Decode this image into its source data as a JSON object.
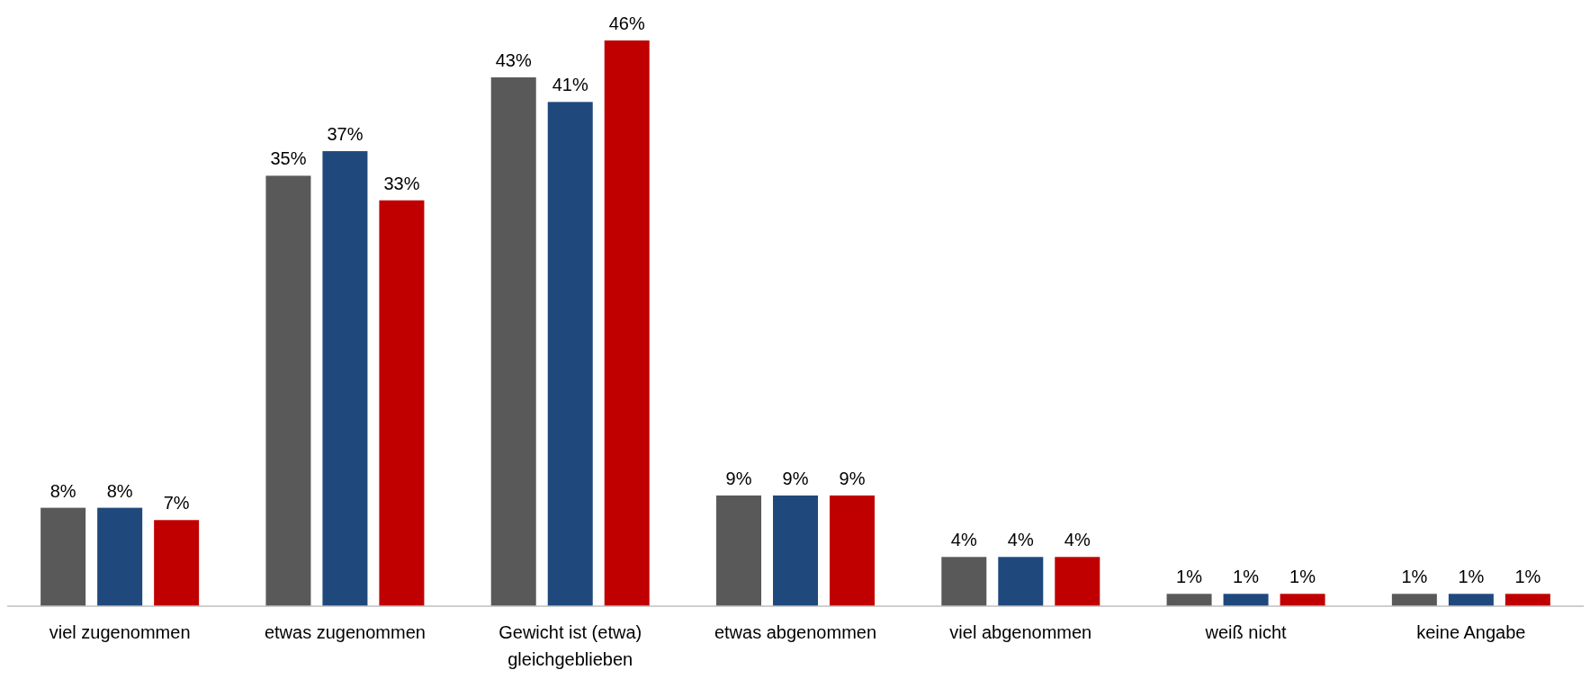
{
  "chart_data": {
    "type": "bar",
    "categories": [
      "viel zugenommen",
      "etwas zugenommen",
      "Gewicht ist (etwa) gleichgeblieben",
      "etwas abgenommen",
      "viel abgenommen",
      "weiß nicht",
      "keine Angabe"
    ],
    "series": [
      {
        "color": "#595959",
        "values": [
          8,
          35,
          43,
          9,
          4,
          1,
          1
        ],
        "value_labels": [
          "8%",
          "35%",
          "43%",
          "9%",
          "4%",
          "1%",
          "1%"
        ]
      },
      {
        "color": "#1f497d",
        "values": [
          8,
          37,
          41,
          9,
          4,
          1,
          1
        ],
        "value_labels": [
          "8%",
          "37%",
          "41%",
          "9%",
          "4%",
          "1%",
          "1%"
        ]
      },
      {
        "color": "#c00000",
        "values": [
          7,
          33,
          46,
          9,
          4,
          1,
          1
        ],
        "value_labels": [
          "7%",
          "33%",
          "46%",
          "9%",
          "4%",
          "1%",
          "1%"
        ]
      }
    ]
  }
}
